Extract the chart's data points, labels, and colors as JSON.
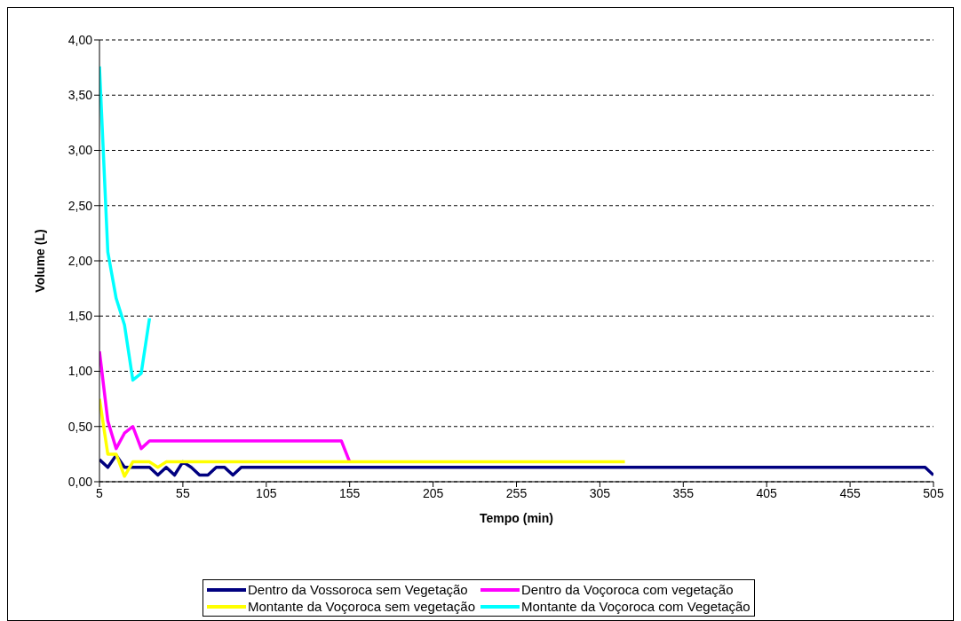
{
  "chart_data": {
    "type": "line",
    "xlabel": "Tempo (min)",
    "ylabel": "Volume (L)",
    "xlim": [
      5,
      505
    ],
    "xticks": [
      5,
      55,
      105,
      155,
      205,
      255,
      305,
      355,
      405,
      455,
      505
    ],
    "ylim": [
      0,
      4
    ],
    "yticks": [
      {
        "value": 0,
        "label": "0,00"
      },
      {
        "value": 0.5,
        "label": "0,50"
      },
      {
        "value": 1,
        "label": "1,00"
      },
      {
        "value": 1.5,
        "label": "1,50"
      },
      {
        "value": 2,
        "label": "2,00"
      },
      {
        "value": 2.5,
        "label": "2,50"
      },
      {
        "value": 3,
        "label": "3,00"
      },
      {
        "value": 3.5,
        "label": "3,50"
      },
      {
        "value": 4,
        "label": "4,00"
      }
    ],
    "grid": "y",
    "legend": "bottom",
    "line_style": "solid",
    "series": [
      {
        "name": "Dentro da Vossoroca sem Vegetação",
        "color": "#000080",
        "x": [
          5,
          10,
          15,
          20,
          35,
          40,
          45,
          50,
          55,
          60,
          65,
          70,
          75,
          80,
          85,
          90,
          500,
          505
        ],
        "values": [
          0.2,
          0.13,
          0.24,
          0.13,
          0.13,
          0.06,
          0.13,
          0.06,
          0.18,
          0.13,
          0.06,
          0.06,
          0.13,
          0.13,
          0.06,
          0.13,
          0.13,
          0.06
        ]
      },
      {
        "name": "Dentro da Voçoroca com vegetação",
        "color": "#ff00ff",
        "x": [
          5,
          10,
          15,
          20,
          25,
          30,
          35,
          150,
          155
        ],
        "values": [
          1.18,
          0.55,
          0.3,
          0.44,
          0.5,
          0.3,
          0.37,
          0.37,
          0.18
        ]
      },
      {
        "name": "Montante da Voçoroca sem vegetação",
        "color": "#ffff00",
        "x": [
          5,
          10,
          15,
          20,
          25,
          35,
          40,
          45,
          320
        ],
        "values": [
          0.75,
          0.25,
          0.25,
          0.05,
          0.18,
          0.18,
          0.13,
          0.18,
          0.18
        ]
      },
      {
        "name": "Montante da Voçoroca com Vegetação",
        "color": "#00ffff",
        "x": [
          5,
          10,
          15,
          20,
          25,
          30,
          35
        ],
        "values": [
          3.76,
          2.08,
          1.66,
          1.42,
          0.92,
          0.98,
          1.48
        ]
      }
    ]
  }
}
